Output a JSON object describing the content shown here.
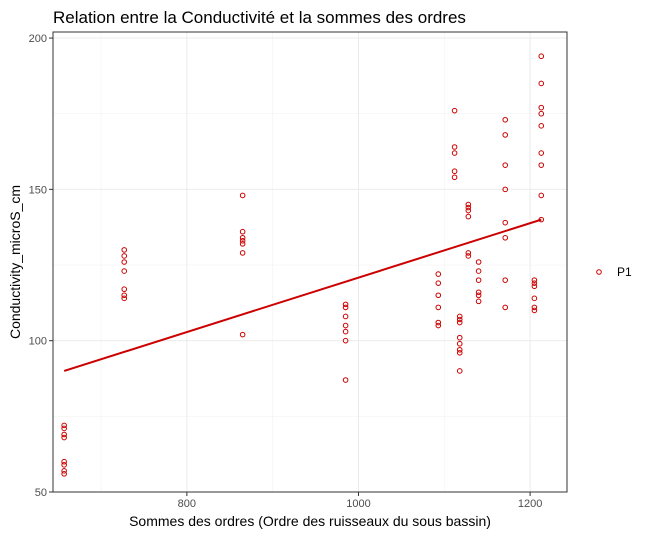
{
  "chart_data": {
    "type": "scatter",
    "title": "Relation entre la Conductivité et la sommes des ordres",
    "xlabel": "Sommes des ordres (Ordre des ruisseaux du sous bassin)",
    "ylabel": "Conductivity_microS_cm",
    "xlim": [
      644,
      1243
    ],
    "ylim": [
      50,
      202
    ],
    "x_ticks": [
      "800",
      "1000",
      "1200"
    ],
    "y_ticks": [
      "50",
      "100",
      "150",
      "200"
    ],
    "grid": true,
    "legend_position": "right",
    "color": "#cc0000",
    "series": [
      {
        "name": "P1",
        "points": [
          [
            657,
            72
          ],
          [
            657,
            71
          ],
          [
            657,
            69
          ],
          [
            657,
            68
          ],
          [
            657,
            60
          ],
          [
            657,
            59
          ],
          [
            657,
            57
          ],
          [
            657,
            56
          ],
          [
            727,
            130
          ],
          [
            727,
            128
          ],
          [
            727,
            126
          ],
          [
            727,
            123
          ],
          [
            727,
            117
          ],
          [
            727,
            115
          ],
          [
            727,
            114
          ],
          [
            865,
            148
          ],
          [
            865,
            136
          ],
          [
            865,
            134
          ],
          [
            865,
            133
          ],
          [
            865,
            132
          ],
          [
            865,
            129
          ],
          [
            865,
            102
          ],
          [
            985,
            112
          ],
          [
            985,
            111
          ],
          [
            985,
            108
          ],
          [
            985,
            105
          ],
          [
            985,
            103
          ],
          [
            985,
            100
          ],
          [
            985,
            87
          ],
          [
            1093,
            122
          ],
          [
            1093,
            119
          ],
          [
            1093,
            115
          ],
          [
            1093,
            111
          ],
          [
            1093,
            106
          ],
          [
            1093,
            105
          ],
          [
            1112,
            176
          ],
          [
            1112,
            164
          ],
          [
            1112,
            162
          ],
          [
            1112,
            156
          ],
          [
            1112,
            154
          ],
          [
            1118,
            108
          ],
          [
            1118,
            107
          ],
          [
            1118,
            106
          ],
          [
            1118,
            101
          ],
          [
            1118,
            99
          ],
          [
            1118,
            97
          ],
          [
            1118,
            96
          ],
          [
            1118,
            90
          ],
          [
            1128,
            145
          ],
          [
            1128,
            144
          ],
          [
            1128,
            143
          ],
          [
            1128,
            141
          ],
          [
            1128,
            129
          ],
          [
            1128,
            128
          ],
          [
            1140,
            126
          ],
          [
            1140,
            123
          ],
          [
            1140,
            120
          ],
          [
            1140,
            116
          ],
          [
            1140,
            115
          ],
          [
            1140,
            113
          ],
          [
            1171,
            173
          ],
          [
            1171,
            168
          ],
          [
            1171,
            158
          ],
          [
            1171,
            150
          ],
          [
            1171,
            139
          ],
          [
            1171,
            134
          ],
          [
            1171,
            120
          ],
          [
            1171,
            111
          ],
          [
            1205,
            120
          ],
          [
            1205,
            119
          ],
          [
            1205,
            118
          ],
          [
            1205,
            114
          ],
          [
            1205,
            111
          ],
          [
            1205,
            110
          ],
          [
            1213,
            194
          ],
          [
            1213,
            185
          ],
          [
            1213,
            177
          ],
          [
            1213,
            175
          ],
          [
            1213,
            171
          ],
          [
            1213,
            162
          ],
          [
            1213,
            158
          ],
          [
            1213,
            148
          ],
          [
            1213,
            140
          ]
        ]
      }
    ],
    "trend_line": {
      "x": [
        657,
        1213
      ],
      "y": [
        90,
        140
      ]
    }
  }
}
